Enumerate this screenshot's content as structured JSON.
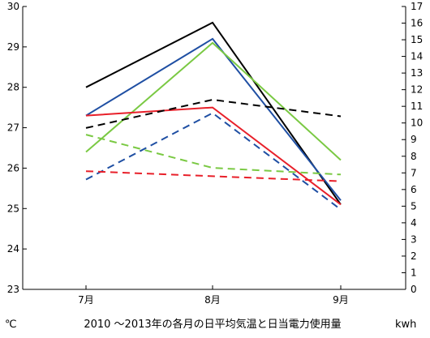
{
  "chart_data": {
    "type": "line",
    "title": "2010 ～2013年の各月の日平均気温と日当電力使用量",
    "categories": [
      "7月",
      "8月",
      "9月"
    ],
    "left_axis": {
      "unit": "℃",
      "ylim": [
        23,
        30
      ],
      "ticks": [
        23,
        24,
        25,
        26,
        27,
        28,
        29,
        30
      ]
    },
    "right_axis": {
      "unit": "kwh",
      "ylim": [
        0,
        17
      ],
      "ticks": [
        0,
        1,
        2,
        3,
        4,
        5,
        6,
        7,
        8,
        9,
        10,
        11,
        12,
        13,
        14,
        15,
        16,
        17
      ]
    },
    "series": [
      {
        "axis": "left",
        "style": "solid",
        "color": "#000000",
        "values": [
          28.0,
          29.6,
          25.1
        ]
      },
      {
        "axis": "left",
        "style": "solid",
        "color": "#1f4fa3",
        "values": [
          27.3,
          29.2,
          25.2
        ]
      },
      {
        "axis": "left",
        "style": "solid",
        "color": "#7ac943",
        "values": [
          26.4,
          29.1,
          26.2
        ]
      },
      {
        "axis": "left",
        "style": "solid",
        "color": "#e8202a",
        "values": [
          27.3,
          27.5,
          25.1
        ]
      },
      {
        "axis": "right",
        "style": "dashed",
        "color": "#000000",
        "values": [
          9.7,
          11.4,
          10.4
        ]
      },
      {
        "axis": "right",
        "style": "dashed",
        "color": "#1f4fa3",
        "values": [
          6.6,
          10.6,
          4.8
        ]
      },
      {
        "axis": "right",
        "style": "dashed",
        "color": "#7ac943",
        "values": [
          9.3,
          7.3,
          6.9
        ]
      },
      {
        "axis": "right",
        "style": "dashed",
        "color": "#e8202a",
        "values": [
          7.1,
          6.8,
          6.5
        ]
      }
    ],
    "grid": false,
    "legend": "none"
  }
}
